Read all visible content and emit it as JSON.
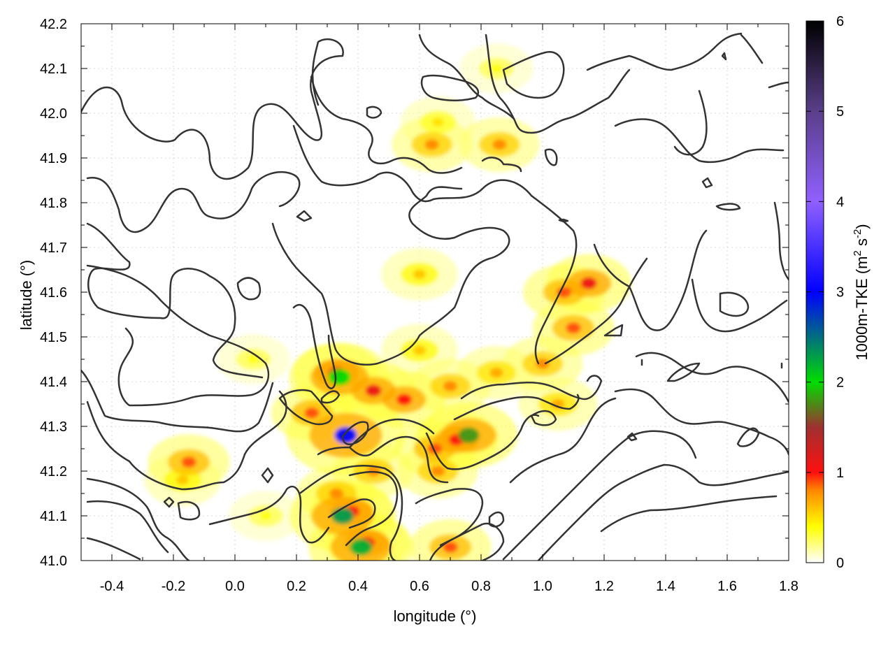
{
  "chart_data": {
    "type": "heatmap",
    "title": "",
    "xlabel": "longitude (°)",
    "ylabel": "latitude (°)",
    "xlim": [
      -0.5,
      1.8
    ],
    "ylim": [
      41.0,
      42.2
    ],
    "x_ticks": [
      "-0.4",
      "-0.2",
      "0.0",
      "0.2",
      "0.4",
      "0.6",
      "0.8",
      "1.0",
      "1.2",
      "1.4",
      "1.6",
      "1.8"
    ],
    "x_tick_values": [
      -0.4,
      -0.2,
      0.0,
      0.2,
      0.4,
      0.6,
      0.8,
      1.0,
      1.2,
      1.4,
      1.6,
      1.8
    ],
    "y_ticks": [
      "41.0",
      "41.1",
      "41.2",
      "41.3",
      "41.4",
      "41.5",
      "41.6",
      "41.7",
      "41.8",
      "41.9",
      "42.0",
      "42.1",
      "42.2"
    ],
    "y_tick_values": [
      41.0,
      41.1,
      41.2,
      41.3,
      41.4,
      41.5,
      41.6,
      41.7,
      41.8,
      41.9,
      42.0,
      42.1,
      42.2
    ],
    "grid": true,
    "colorbar": {
      "label": "1000m-TKE (m",
      "label_sup1": "2",
      "label_mid": " s",
      "label_sup2": "-2",
      "label_end": ")",
      "range": [
        0,
        6
      ],
      "ticks": [
        "0",
        "1",
        "2",
        "3",
        "4",
        "5",
        "6"
      ],
      "tick_values": [
        0,
        1,
        2,
        3,
        4,
        5,
        6
      ],
      "palette": [
        {
          "value": 0.0,
          "color": "#ffffff"
        },
        {
          "value": 0.4,
          "color": "#ffff00"
        },
        {
          "value": 0.8,
          "color": "#ff8800"
        },
        {
          "value": 1.0,
          "color": "#ff1010"
        },
        {
          "value": 1.5,
          "color": "#a03030"
        },
        {
          "value": 2.0,
          "color": "#00dd00"
        },
        {
          "value": 3.0,
          "color": "#0000ff"
        },
        {
          "value": 4.0,
          "color": "#9060ff"
        },
        {
          "value": 5.0,
          "color": "#5a3f8a"
        },
        {
          "value": 6.0,
          "color": "#000000"
        }
      ]
    },
    "tke_hotspots": [
      {
        "lon": 0.33,
        "lat": 41.42,
        "tke": 1.1
      },
      {
        "lon": 0.45,
        "lat": 41.38,
        "tke": 1.1
      },
      {
        "lon": 0.55,
        "lat": 41.36,
        "tke": 1.0
      },
      {
        "lon": 0.25,
        "lat": 41.33,
        "tke": 0.9
      },
      {
        "lon": 0.7,
        "lat": 41.39,
        "tke": 0.8
      },
      {
        "lon": 0.85,
        "lat": 41.42,
        "tke": 0.7
      },
      {
        "lon": 1.0,
        "lat": 41.44,
        "tke": 0.8
      },
      {
        "lon": 1.1,
        "lat": 41.52,
        "tke": 0.9
      },
      {
        "lon": 1.15,
        "lat": 41.62,
        "tke": 1.1
      },
      {
        "lon": 1.07,
        "lat": 41.6,
        "tke": 0.9
      },
      {
        "lon": 0.6,
        "lat": 41.47,
        "tke": 0.6
      },
      {
        "lon": 0.72,
        "lat": 41.27,
        "tke": 1.0
      },
      {
        "lon": 0.65,
        "lat": 41.25,
        "tke": 0.9
      },
      {
        "lon": 0.76,
        "lat": 41.28,
        "tke": 1.8
      },
      {
        "lon": 0.36,
        "lat": 41.28,
        "tke": 3.0
      },
      {
        "lon": 0.34,
        "lat": 41.41,
        "tke": 2.0
      },
      {
        "lon": 0.38,
        "lat": 41.11,
        "tke": 1.0
      },
      {
        "lon": 0.33,
        "lat": 41.15,
        "tke": 0.8
      },
      {
        "lon": 0.35,
        "lat": 41.1,
        "tke": 2.3
      },
      {
        "lon": 0.43,
        "lat": 41.04,
        "tke": 1.0
      },
      {
        "lon": 0.41,
        "lat": 41.03,
        "tke": 2.2
      },
      {
        "lon": -0.15,
        "lat": 41.22,
        "tke": 0.9
      },
      {
        "lon": -0.17,
        "lat": 41.18,
        "tke": 0.6
      },
      {
        "lon": 0.66,
        "lat": 41.98,
        "tke": 0.5
      },
      {
        "lon": 0.64,
        "lat": 41.93,
        "tke": 0.8
      },
      {
        "lon": 0.86,
        "lat": 41.93,
        "tke": 0.8
      },
      {
        "lon": 0.6,
        "lat": 41.64,
        "tke": 0.6
      },
      {
        "lon": 0.7,
        "lat": 41.03,
        "tke": 0.9
      },
      {
        "lon": 0.66,
        "lat": 41.2,
        "tke": 0.8
      },
      {
        "lon": 0.06,
        "lat": 41.45,
        "tke": 0.4
      },
      {
        "lon": 0.1,
        "lat": 41.1,
        "tke": 0.4
      },
      {
        "lon": 0.45,
        "lat": 41.2,
        "tke": 0.8
      },
      {
        "lon": 1.05,
        "lat": 41.35,
        "tke": 0.7
      },
      {
        "lon": 0.85,
        "lat": 42.1,
        "tke": 0.4
      }
    ]
  }
}
